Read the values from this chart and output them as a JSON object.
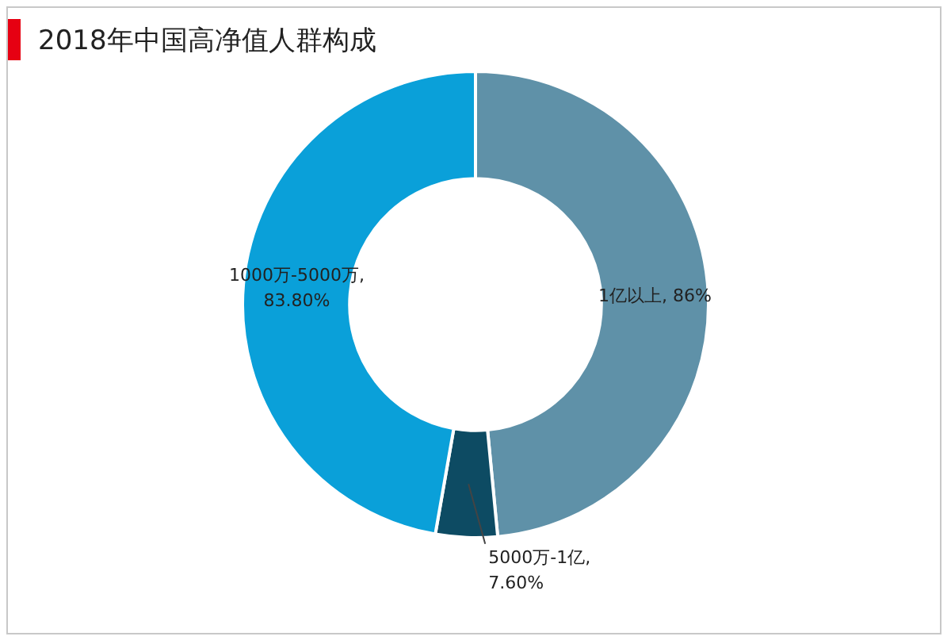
{
  "chart_data": {
    "type": "donut",
    "title": "2018年中国高净值人群构成",
    "categories": [
      "1亿以上",
      "5000万-1亿",
      "1000万-5000万"
    ],
    "values": [
      86,
      7.6,
      83.8
    ],
    "value_labels": [
      ", 86%",
      ", 7.60%",
      ", 83.80%"
    ],
    "colors": [
      "#5f91a8",
      "#0d4b63",
      "#0aa0d9"
    ],
    "legend": false
  }
}
